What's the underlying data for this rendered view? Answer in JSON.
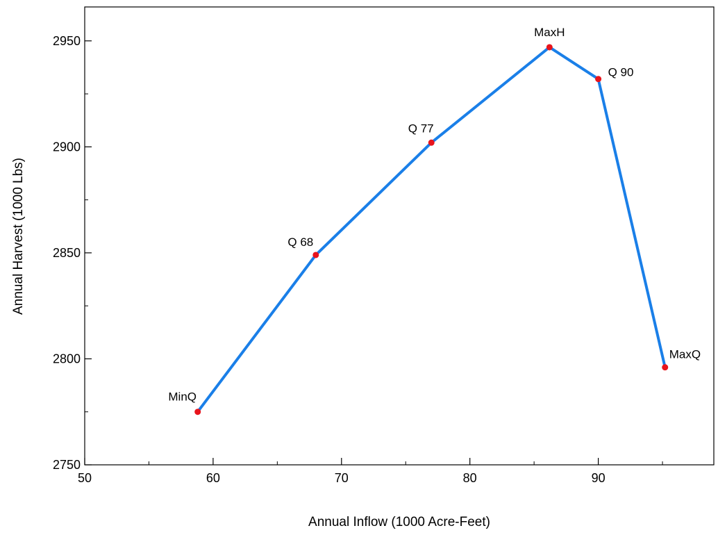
{
  "chart_data": {
    "type": "line",
    "title": "",
    "xlabel": "Annual Inflow (1000 Acre-Feet)",
    "ylabel": "Annual Harvest (1000 Lbs)",
    "xlim": [
      50,
      99
    ],
    "ylim": [
      2750,
      2966
    ],
    "x_ticks": [
      50,
      60,
      70,
      80,
      90
    ],
    "y_ticks": [
      2750,
      2800,
      2850,
      2900,
      2950
    ],
    "grid": false,
    "legend": "none",
    "line_color": "#1a7fe8",
    "marker_color": "#e8141c",
    "points": [
      {
        "label": "MinQ",
        "x": 58.8,
        "y": 2775
      },
      {
        "label": "Q 68",
        "x": 68.0,
        "y": 2849
      },
      {
        "label": "Q 77",
        "x": 77.0,
        "y": 2902
      },
      {
        "label": "MaxH",
        "x": 86.2,
        "y": 2947
      },
      {
        "label": "Q 90",
        "x": 90.0,
        "y": 2932
      },
      {
        "label": "MaxQ",
        "x": 95.2,
        "y": 2796
      }
    ]
  }
}
